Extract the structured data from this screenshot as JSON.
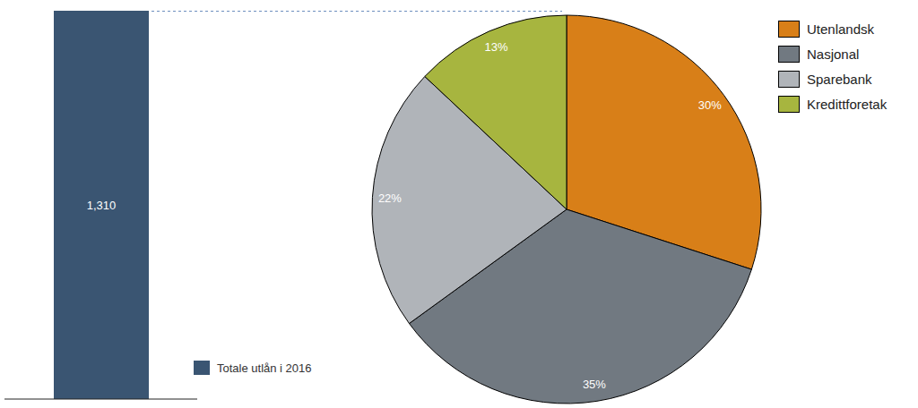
{
  "chart_data": [
    {
      "type": "bar",
      "categories": [
        null
      ],
      "series": [
        {
          "name": "Totale utlån i 2016",
          "color": "#3a5572",
          "values": [
            1310
          ],
          "value_labels": [
            "1,310"
          ]
        }
      ],
      "ylim": [
        0,
        1310
      ],
      "data_labels": true,
      "tick_labels": false
    },
    {
      "type": "pie",
      "categories": [
        "Utenlandsk",
        "Nasjonal",
        "Sparebank",
        "Kredittforetak"
      ],
      "values": [
        30,
        35,
        22,
        13
      ],
      "value_labels": [
        "30%",
        "35%",
        "22%",
        "13%"
      ],
      "colors": [
        "#d87f18",
        "#717981",
        "#b0b4b9",
        "#a7b53f"
      ],
      "data_labels": true,
      "legend": "upper right"
    }
  ]
}
